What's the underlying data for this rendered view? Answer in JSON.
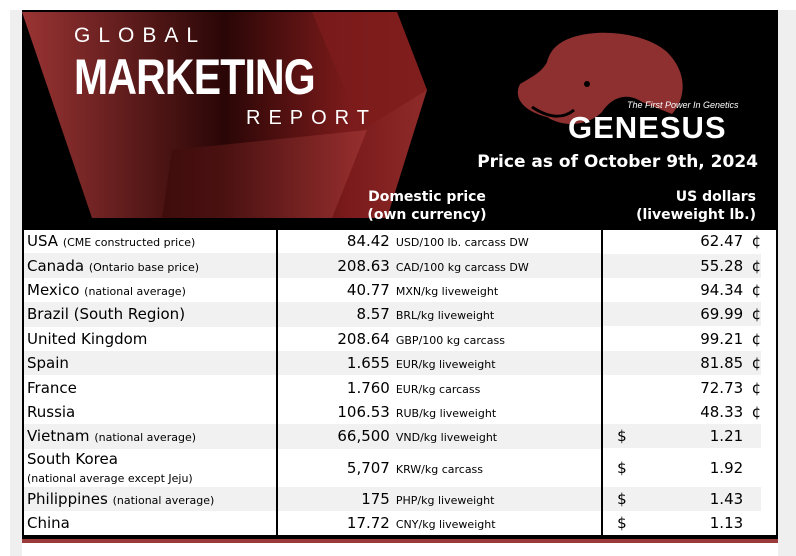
{
  "header": {
    "global": "GLOBAL",
    "marketing": "MARKETING",
    "report": "REPORT",
    "brand": "GENESUS",
    "tagline": "The First Power In Genetics",
    "price_date": "Price as of October 9th, 2024",
    "col_domestic": [
      "Domestic price",
      "(own currency)"
    ],
    "col_usd": [
      "US dollars",
      "(liveweight lb.)"
    ]
  },
  "colors": {
    "accent": "#8b2a2a",
    "header_bg": "#000000",
    "row_shade": "#f1f1f1"
  },
  "rows": [
    {
      "country": "USA",
      "note": "(CME constructed price)",
      "price": "84.42",
      "unit": "USD/100 lb. carcass DW",
      "usd": "62.47",
      "sym": "¢"
    },
    {
      "country": "Canada",
      "note": "(Ontario base price)",
      "price": "208.63",
      "unit": "CAD/100 kg carcass DW",
      "usd": "55.28",
      "sym": "¢"
    },
    {
      "country": "Mexico",
      "note": "(national average)",
      "price": "40.77",
      "unit": "MXN/kg liveweight",
      "usd": "94.34",
      "sym": "¢"
    },
    {
      "country": "Brazil (South Region)",
      "note": "",
      "price": "8.57",
      "unit": "BRL/kg liveweight",
      "usd": "69.99",
      "sym": "¢"
    },
    {
      "country": "United Kingdom",
      "note": "",
      "price": "208.64",
      "unit": "GBP/100 kg carcass",
      "usd": "99.21",
      "sym": "¢"
    },
    {
      "country": "Spain",
      "note": "",
      "price": "1.655",
      "unit": "EUR/kg liveweight",
      "usd": "81.85",
      "sym": "¢"
    },
    {
      "country": "France",
      "note": "",
      "price": "1.760",
      "unit": "EUR/kg carcass",
      "usd": "72.73",
      "sym": "¢"
    },
    {
      "country": "Russia",
      "note": "",
      "price": "106.53",
      "unit": "RUB/kg liveweight",
      "usd": "48.33",
      "sym": "¢"
    },
    {
      "country": "Vietnam",
      "note": "(national average)",
      "price": "66,500",
      "unit": "VND/kg liveweight",
      "usd": "1.21",
      "sym": "$"
    },
    {
      "country": "South Korea",
      "note": "(national average except Jeju)",
      "price": "5,707",
      "unit": "KRW/kg carcass",
      "usd": "1.92",
      "sym": "$"
    },
    {
      "country": "Philippines",
      "note": "(national average)",
      "price": "175",
      "unit": "PHP/kg liveweight",
      "usd": "1.43",
      "sym": "$"
    },
    {
      "country": "China",
      "note": "",
      "price": "17.72",
      "unit": "CNY/kg liveweight",
      "usd": "1.13",
      "sym": "$"
    }
  ]
}
